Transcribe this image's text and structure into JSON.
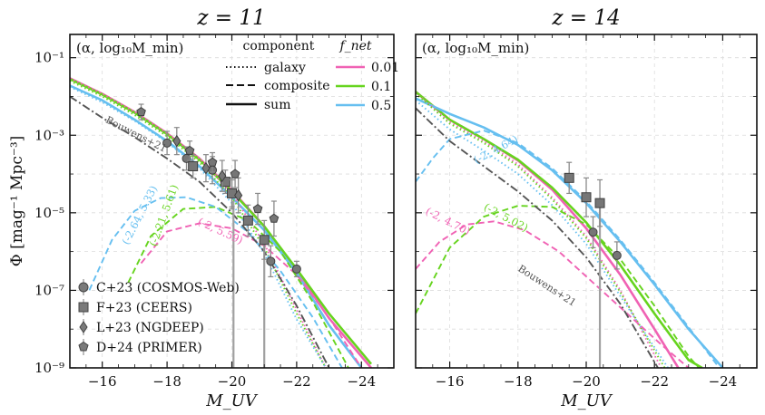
{
  "figure": {
    "ylabel": "Φ [mag⁻¹ Mpc⁻³]",
    "xlabel": "M_UV",
    "legend_component": {
      "title": "component",
      "items": [
        {
          "label": "galaxy",
          "style": "dotted"
        },
        {
          "label": "composite",
          "style": "dashed"
        },
        {
          "label": "sum",
          "style": "solid"
        }
      ]
    },
    "legend_fnet": {
      "title": "f_net",
      "items": [
        {
          "label": "0.01",
          "color": "#f062b4"
        },
        {
          "label": "0.1",
          "color": "#66d41e"
        },
        {
          "label": "0.5",
          "color": "#66bff0"
        }
      ]
    },
    "legend_data": [
      {
        "label": "C+23 (COSMOS-Web)",
        "marker": "circle"
      },
      {
        "label": "F+23 (CEERS)",
        "marker": "square"
      },
      {
        "label": "L+23 (NGDEEP)",
        "marker": "diamond"
      },
      {
        "label": "D+24 (PRIMER)",
        "marker": "pentagon"
      }
    ],
    "colors": {
      "f001": "#f062b4",
      "f01": "#66d41e",
      "f05": "#66bff0",
      "bouwens": "#555555",
      "data": "#777777"
    }
  },
  "chart_data": [
    {
      "type": "line",
      "title": "z = 11",
      "params_label": "(α, log₁₀M_min)",
      "xlabel": "M_UV",
      "ylabel": "Φ [mag⁻¹ Mpc⁻³]",
      "xlim": [
        -15,
        -25
      ],
      "ylim_log10": [
        -9,
        -0.4
      ],
      "xticks": [
        -16,
        -18,
        -20,
        -22,
        -24
      ],
      "xtick_labels": [
        "−16",
        "−18",
        "−20",
        "−22",
        "−24"
      ],
      "yticks_log10": [
        -1,
        -3,
        -5,
        -7,
        -9
      ],
      "ytick_labels": [
        "10⁻¹",
        "10⁻³",
        "10⁻⁵",
        "10⁻⁷",
        "10⁻⁹"
      ],
      "grid": true,
      "series": [
        {
          "name": "sum f_net=0.01",
          "color": "f001",
          "style": "solid",
          "x": [
            -15,
            -16,
            -17,
            -18,
            -19,
            -20,
            -21,
            -22,
            -23,
            -24.3
          ],
          "y": [
            -1.53,
            -1.93,
            -2.4,
            -2.95,
            -3.6,
            -4.42,
            -5.35,
            -6.5,
            -7.72,
            -9.0
          ]
        },
        {
          "name": "sum f_net=0.1",
          "color": "f01",
          "style": "solid",
          "x": [
            -15,
            -16,
            -17,
            -18,
            -19,
            -20,
            -21,
            -22,
            -23,
            -24.3
          ],
          "y": [
            -1.55,
            -1.95,
            -2.42,
            -2.97,
            -3.63,
            -4.45,
            -5.35,
            -6.45,
            -7.6,
            -8.9
          ]
        },
        {
          "name": "sum f_net=0.5",
          "color": "f05",
          "style": "solid",
          "x": [
            -15,
            -16,
            -17,
            -18,
            -19,
            -20,
            -21,
            -22,
            -23,
            -24.0
          ],
          "y": [
            -1.72,
            -2.1,
            -2.6,
            -3.15,
            -3.8,
            -4.6,
            -5.45,
            -6.55,
            -7.9,
            -9.0
          ]
        },
        {
          "name": "galaxy f_net=0.01",
          "color": "f001",
          "style": "dotted",
          "x": [
            -15,
            -16,
            -17,
            -18,
            -19,
            -20,
            -21,
            -22,
            -22.9
          ],
          "y": [
            -1.53,
            -1.93,
            -2.4,
            -2.95,
            -3.6,
            -4.5,
            -5.8,
            -7.5,
            -9.0
          ]
        },
        {
          "name": "galaxy f_net=0.1",
          "color": "f01",
          "style": "dotted",
          "x": [
            -15,
            -16,
            -17,
            -18,
            -19,
            -20,
            -21,
            -22,
            -22.9
          ],
          "y": [
            -1.6,
            -2.0,
            -2.48,
            -3.03,
            -3.7,
            -4.6,
            -5.9,
            -7.6,
            -9.0
          ]
        },
        {
          "name": "galaxy f_net=0.5",
          "color": "f05",
          "style": "dotted",
          "x": [
            -15,
            -16,
            -17,
            -18,
            -19,
            -20,
            -21,
            -22,
            -22.9
          ],
          "y": [
            -1.75,
            -2.15,
            -2.63,
            -3.18,
            -3.85,
            -4.75,
            -6.05,
            -7.75,
            -9.0
          ]
        },
        {
          "name": "composite f_net=0.01",
          "color": "f001",
          "style": "dashed",
          "x": [
            -17.2,
            -18,
            -19,
            -20,
            -21,
            -22,
            -23,
            -24.0
          ],
          "y": [
            -6.3,
            -5.48,
            -5.27,
            -5.4,
            -5.85,
            -6.6,
            -7.7,
            -9.0
          ]
        },
        {
          "name": "composite f_net=0.1",
          "color": "f01",
          "style": "dashed",
          "x": [
            -16.8,
            -17.5,
            -18.5,
            -19.5,
            -20.5,
            -21.5,
            -22.5,
            -23.6
          ],
          "y": [
            -6.8,
            -5.6,
            -4.9,
            -4.85,
            -5.2,
            -6.0,
            -7.3,
            -9.0
          ]
        },
        {
          "name": "composite f_net=0.5",
          "color": "f05",
          "style": "dashed",
          "x": [
            -15.6,
            -16.3,
            -17,
            -17.8,
            -18.6,
            -19.5,
            -20.5,
            -21.5,
            -22.5,
            -23.4
          ],
          "y": [
            -7.0,
            -5.7,
            -4.95,
            -4.62,
            -4.6,
            -4.85,
            -5.5,
            -6.5,
            -7.7,
            -9.0
          ]
        },
        {
          "name": "Bouwens+21",
          "color": "bouwens",
          "style": "dashdot",
          "x": [
            -15,
            -16,
            -17,
            -18,
            -19,
            -20,
            -21,
            -22,
            -23.0
          ],
          "y": [
            -2.0,
            -2.55,
            -3.05,
            -3.6,
            -4.2,
            -5.0,
            -6.0,
            -7.4,
            -9.0
          ]
        }
      ],
      "points": [
        {
          "source": "C+23 (COSMOS-Web)",
          "marker": "circle",
          "x": [
            -18.0,
            -18.6,
            -19.4,
            -20.0,
            -21.2,
            -22.0
          ],
          "y": [
            -3.2,
            -3.6,
            -3.9,
            -4.5,
            -6.25,
            -6.45
          ],
          "yerr": [
            0.3,
            0.3,
            0.35,
            0.4,
            0.4,
            0.2
          ]
        },
        {
          "source": "F+23 (CEERS)",
          "marker": "square",
          "x": [
            -18.8,
            -19.8,
            -20.0,
            -20.5,
            -21.0
          ],
          "y": [
            -3.8,
            -4.2,
            -4.5,
            -5.2,
            -5.7
          ],
          "yerr": [
            0.3,
            0.3,
            0.35,
            0.4,
            0.5
          ]
        },
        {
          "source": "L+23 (NGDEEP)",
          "marker": "diamond",
          "x": [
            -18.3,
            -19.2,
            -19.7,
            -20.2
          ],
          "y": [
            -3.15,
            -3.85,
            -4.05,
            -4.55
          ],
          "yerr": [
            0.35,
            0.35,
            0.4,
            0.45
          ]
        },
        {
          "source": "D+24 (PRIMER)",
          "marker": "pentagon",
          "x": [
            -17.2,
            -18.7,
            -19.4,
            -20.1,
            -20.8,
            -21.3
          ],
          "y": [
            -2.4,
            -3.4,
            -3.7,
            -4.0,
            -4.9,
            -5.15
          ],
          "yerr": [
            0.2,
            0.25,
            0.25,
            0.35,
            0.4,
            0.45
          ]
        }
      ],
      "vlines": [
        {
          "x": -20.05,
          "y_from": -4.7
        },
        {
          "x": -21.0,
          "y_from": -5.7
        }
      ],
      "annotations": [
        {
          "text": "Bouwens+21",
          "color": "bouwens",
          "x": -17.0,
          "y": -3.05,
          "angle": 27
        },
        {
          "text": "(-2.64, 5.33)",
          "color": "f05",
          "x": -17.25,
          "y": -5.1,
          "angle": -63
        },
        {
          "text": "(-2.21, 5.61)",
          "color": "f01",
          "x": -18.0,
          "y": -5.1,
          "angle": -70
        },
        {
          "text": "(-2, 5.59)",
          "color": "f001",
          "x": -19.6,
          "y": -5.55,
          "angle": 25
        }
      ]
    },
    {
      "type": "line",
      "title": "z = 14",
      "params_label": "(α, log₁₀M_min)",
      "xlabel": "M_UV",
      "ylabel": "",
      "xlim": [
        -15,
        -25
      ],
      "ylim_log10": [
        -9,
        -0.4
      ],
      "xticks": [
        -16,
        -18,
        -20,
        -22,
        -24
      ],
      "xtick_labels": [
        "−16",
        "−18",
        "−20",
        "−22",
        "−24"
      ],
      "yticks_log10": [
        -1,
        -3,
        -5,
        -7,
        -9
      ],
      "ytick_labels": [
        "",
        "",
        "",
        "",
        ""
      ],
      "grid": true,
      "series": [
        {
          "name": "sum f_net=0.01",
          "color": "f001",
          "style": "solid",
          "x": [
            -15,
            -16,
            -17,
            -18,
            -19,
            -20,
            -21,
            -22,
            -22.7
          ],
          "y": [
            -1.88,
            -2.6,
            -3.1,
            -3.65,
            -4.4,
            -5.4,
            -6.6,
            -8.0,
            -9.0
          ]
        },
        {
          "name": "sum f_net=0.1",
          "color": "f01",
          "style": "solid",
          "x": [
            -15,
            -16,
            -17,
            -18,
            -19,
            -20,
            -21,
            -22,
            -23,
            -23.4
          ],
          "y": [
            -1.88,
            -2.6,
            -3.1,
            -3.63,
            -4.35,
            -5.25,
            -6.35,
            -7.6,
            -8.8,
            -9.0
          ]
        },
        {
          "name": "sum f_net=0.5",
          "color": "f05",
          "style": "solid",
          "x": [
            -15,
            -16,
            -17,
            -18,
            -19,
            -20,
            -21,
            -22,
            -23,
            -24.0
          ],
          "y": [
            -2.05,
            -2.45,
            -2.8,
            -3.25,
            -3.9,
            -4.75,
            -5.75,
            -6.85,
            -8.0,
            -9.0
          ]
        },
        {
          "name": "galaxy f_net=0.01",
          "color": "f001",
          "style": "dotted",
          "x": [
            -15,
            -16,
            -17,
            -18,
            -19,
            -20,
            -21,
            -22.2
          ],
          "y": [
            -1.9,
            -2.65,
            -3.15,
            -3.75,
            -4.6,
            -5.6,
            -7.0,
            -9.0
          ]
        },
        {
          "name": "galaxy f_net=0.1",
          "color": "f01",
          "style": "dotted",
          "x": [
            -15,
            -16,
            -17,
            -18,
            -19,
            -20,
            -21,
            -22.3
          ],
          "y": [
            -1.92,
            -2.7,
            -3.2,
            -3.8,
            -4.65,
            -5.65,
            -7.05,
            -9.0
          ]
        },
        {
          "name": "galaxy f_net=0.5",
          "color": "f05",
          "style": "dotted",
          "x": [
            -15,
            -16,
            -17,
            -18,
            -19,
            -20,
            -21,
            -22.4
          ],
          "y": [
            -2.1,
            -2.85,
            -3.4,
            -4.0,
            -4.8,
            -5.8,
            -7.15,
            -9.0
          ]
        },
        {
          "name": "composite f_net=0.01",
          "color": "f001",
          "style": "dashed",
          "x": [
            -15,
            -15.7,
            -16.5,
            -17.3,
            -18.2,
            -19.2,
            -20.2,
            -21.2,
            -22.2,
            -23.0
          ],
          "y": [
            -6.45,
            -5.75,
            -5.3,
            -5.22,
            -5.45,
            -6.0,
            -6.8,
            -7.6,
            -8.4,
            -9.0
          ]
        },
        {
          "name": "composite f_net=0.1",
          "color": "f01",
          "style": "dashed",
          "x": [
            -15,
            -16,
            -17,
            -18,
            -19,
            -20,
            -21,
            -22,
            -23,
            -23.3
          ],
          "y": [
            -7.6,
            -5.9,
            -5.1,
            -4.82,
            -4.85,
            -5.3,
            -6.2,
            -7.4,
            -8.7,
            -9.0
          ]
        },
        {
          "name": "composite f_net=0.5",
          "color": "f05",
          "style": "dashed",
          "x": [
            -15,
            -15.5,
            -16,
            -17,
            -18,
            -19,
            -20,
            -21,
            -22,
            -23,
            -23.9
          ],
          "y": [
            -4.2,
            -3.6,
            -3.1,
            -2.88,
            -3.2,
            -3.85,
            -4.7,
            -5.7,
            -6.8,
            -7.95,
            -9.0
          ]
        },
        {
          "name": "Bouwens+21",
          "color": "bouwens",
          "style": "dashdot",
          "x": [
            -15,
            -16,
            -17,
            -18,
            -19,
            -20,
            -21,
            -22.1
          ],
          "y": [
            -2.3,
            -3.15,
            -3.8,
            -4.45,
            -5.2,
            -6.15,
            -7.35,
            -9.0
          ]
        }
      ],
      "points": [
        {
          "source": "F+23 (CEERS)",
          "marker": "square",
          "x": [
            -19.5,
            -20.0,
            -20.4
          ],
          "y": [
            -4.1,
            -4.6,
            -4.75
          ],
          "yerr": [
            0.4,
            0.5,
            0.6
          ]
        },
        {
          "source": "C+23 (COSMOS-Web)",
          "marker": "circle",
          "x": [
            -20.2,
            -20.9
          ],
          "y": [
            -5.5,
            -6.1
          ],
          "yerr": [
            0.4,
            0.35
          ]
        }
      ],
      "vlines": [
        {
          "x": -20.4,
          "y_from": -4.75
        }
      ],
      "annotations": [
        {
          "text": "(-2, 4.64)",
          "color": "f05",
          "x": -17.4,
          "y": -3.45,
          "angle": -28
        },
        {
          "text": "(-2, 5.02)",
          "color": "f01",
          "x": -17.6,
          "y": -5.2,
          "angle": 28
        },
        {
          "text": "(-2, 4.70)",
          "color": "f001",
          "x": -15.9,
          "y": -5.3,
          "angle": 27
        },
        {
          "text": "Bouwens+21",
          "color": "bouwens",
          "x": -18.8,
          "y": -6.95,
          "angle": 33
        }
      ]
    }
  ]
}
